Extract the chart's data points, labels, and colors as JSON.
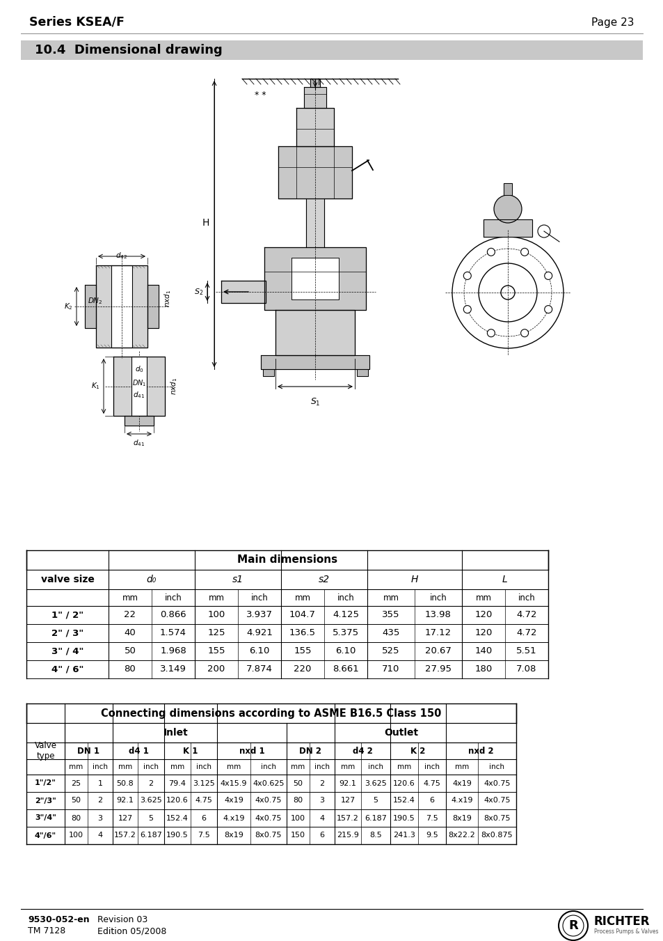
{
  "title_left": "Series KSEA/F",
  "title_right": "Page 23",
  "section_title": "10.4  Dimensional drawing",
  "section_bg": "#c8c8c8",
  "table1_title": "Main dimensions",
  "table1_col_headers": [
    "valve size",
    "d₀",
    "",
    "s1",
    "",
    "s2",
    "",
    "H",
    "",
    "L",
    ""
  ],
  "table1_units": [
    "",
    "mm",
    "inch",
    "mm",
    "inch",
    "mm",
    "inch",
    "mm",
    "inch",
    "mm",
    "inch"
  ],
  "table1_data": [
    [
      "1\" / 2\"",
      "22",
      "0.866",
      "100",
      "3.937",
      "104.7",
      "4.125",
      "355",
      "13.98",
      "120",
      "4.72"
    ],
    [
      "2\" / 3\"",
      "40",
      "1.574",
      "125",
      "4.921",
      "136.5",
      "5.375",
      "435",
      "17.12",
      "120",
      "4.72"
    ],
    [
      "3\" / 4\"",
      "50",
      "1.968",
      "155",
      "6.10",
      "155",
      "6.10",
      "525",
      "20.67",
      "140",
      "5.51"
    ],
    [
      "4\" / 6\"",
      "80",
      "3.149",
      "200",
      "7.874",
      "220",
      "8.661",
      "710",
      "27.95",
      "180",
      "7.08"
    ]
  ],
  "table1_col_widths": [
    118,
    62,
    62,
    62,
    62,
    62,
    62,
    68,
    68,
    62,
    62
  ],
  "table2_title": "Connecting dimensions according to ASME B16.5 Class 150",
  "table2_sub_headers": [
    "DN 1",
    "d4 1",
    "K 1",
    "nxd 1",
    "DN 2",
    "d4 2",
    "K 2",
    "nxd 2"
  ],
  "table2_data": [
    [
      "1\"/2\"",
      "25",
      "1",
      "50.8",
      "2",
      "79.4",
      "3.125",
      "4x15.9",
      "4x0.625",
      "50",
      "2",
      "92.1",
      "3.625",
      "120.6",
      "4.75",
      "4x19",
      "4x0.75"
    ],
    [
      "2\"/3\"",
      "50",
      "2",
      "92.1",
      "3.625",
      "120.6",
      "4.75",
      "4x19",
      "4x0.75",
      "80",
      "3",
      "127",
      "5",
      "152.4",
      "6",
      "4.x19",
      "4x0.75"
    ],
    [
      "3\"/4\"",
      "80",
      "3",
      "127",
      "5",
      "152.4",
      "6",
      "4.x19",
      "4x0.75",
      "100",
      "4",
      "157.2",
      "6.187",
      "190.5",
      "7.5",
      "8x19",
      "8x0.75"
    ],
    [
      "4\"/6\"",
      "100",
      "4",
      "157.2",
      "6.187",
      "190.5",
      "7.5",
      "8x19",
      "8x0.75",
      "150",
      "6",
      "215.9",
      "8.5",
      "241.3",
      "9.5",
      "8x22.2",
      "8x0.875"
    ]
  ],
  "table2_col_widths": [
    55,
    33,
    36,
    36,
    38,
    38,
    38,
    48,
    52,
    33,
    36,
    38,
    42,
    40,
    40,
    46,
    55
  ],
  "footer_left1": "9530-052-en",
  "footer_left2": "TM 7128",
  "footer_right1": "Revision 03",
  "footer_right2": "Edition 05/2008",
  "bg_color": "#ffffff"
}
